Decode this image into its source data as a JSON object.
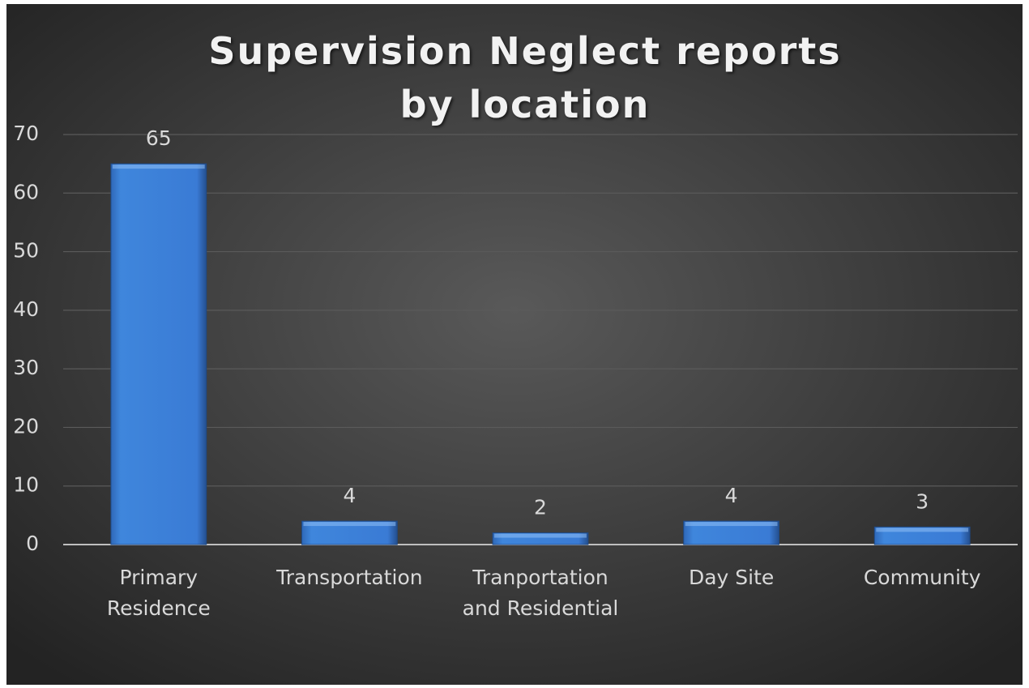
{
  "chart_data": {
    "type": "bar",
    "title": "Supervision Neglect reports by location",
    "categories": [
      "Primary Residence",
      "Transportation",
      "Tranportation and Residential",
      "Day Site",
      "Community"
    ],
    "values": [
      65,
      4,
      2,
      4,
      3
    ],
    "color": "#3a7bd5",
    "ylim": [
      0,
      70
    ],
    "yticks": [
      0,
      10,
      20,
      30,
      40,
      50,
      60,
      70
    ],
    "grid": true
  }
}
